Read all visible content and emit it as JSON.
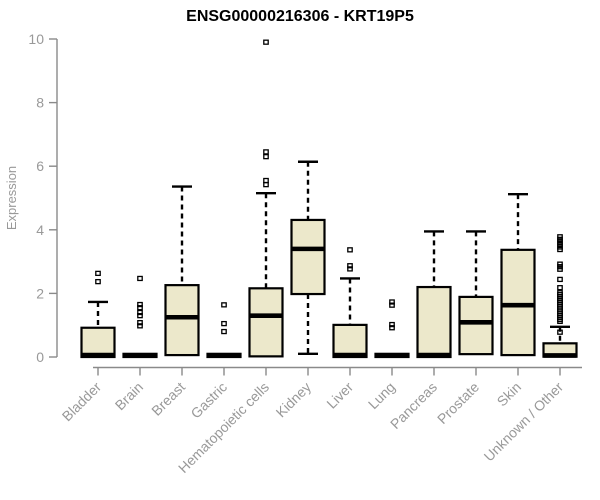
{
  "chart_data": {
    "type": "boxplot",
    "title": "ENSG00000216306 - KRT19P5",
    "ylabel": "Expression",
    "xlabel": "",
    "ylim": [
      0,
      10
    ],
    "yticks": [
      0,
      2,
      4,
      6,
      8,
      10
    ],
    "grid": false,
    "legend": "none",
    "box_fill_color": "#ece8cb",
    "box_stroke_color": "#000000",
    "axis_color": "#8a8a8a",
    "tick_label_color": "#999999",
    "categories": [
      "Bladder",
      "Brain",
      "Breast",
      "Gastric",
      "Hematopoietic cells",
      "Kidney",
      "Liver",
      "Lung",
      "Pancreas",
      "Prostate",
      "Skin",
      "Unknown / Other"
    ],
    "series": [
      {
        "name": "Bladder",
        "whisker_low": null,
        "q1": 0.0,
        "median": 0.06,
        "q3": 0.92,
        "whisker_high": 1.73,
        "outliers": [
          2.63,
          2.37
        ]
      },
      {
        "name": "Brain",
        "whisker_low": null,
        "q1": 0.0,
        "median": 0.05,
        "q3": 0.1,
        "whisker_high": null,
        "outliers": [
          2.47,
          1.65,
          1.55,
          1.4,
          1.3,
          1.08,
          0.98
        ]
      },
      {
        "name": "Breast",
        "whisker_low": null,
        "q1": 0.06,
        "median": 1.25,
        "q3": 2.26,
        "whisker_high": 5.36,
        "outliers": []
      },
      {
        "name": "Gastric",
        "whisker_low": null,
        "q1": 0.0,
        "median": 0.05,
        "q3": 0.1,
        "whisker_high": null,
        "outliers": [
          1.64,
          1.05,
          0.8
        ]
      },
      {
        "name": "Hematopoietic cells",
        "whisker_low": null,
        "q1": 0.02,
        "median": 1.3,
        "q3": 2.16,
        "whisker_high": 5.15,
        "outliers": [
          9.9,
          6.45,
          6.3,
          5.55,
          5.42
        ]
      },
      {
        "name": "Kidney",
        "whisker_low": 0.1,
        "q1": 1.98,
        "median": 3.4,
        "q3": 4.31,
        "whisker_high": 6.14,
        "outliers": []
      },
      {
        "name": "Liver",
        "whisker_low": null,
        "q1": 0.0,
        "median": 0.06,
        "q3": 1.01,
        "whisker_high": 2.47,
        "outliers": [
          3.37,
          2.87,
          2.77
        ]
      },
      {
        "name": "Lung",
        "whisker_low": null,
        "q1": 0.0,
        "median": 0.05,
        "q3": 0.1,
        "whisker_high": null,
        "outliers": [
          1.73,
          1.63,
          1.02,
          0.92
        ]
      },
      {
        "name": "Pancreas",
        "whisker_low": null,
        "q1": 0.0,
        "median": 0.06,
        "q3": 2.2,
        "whisker_high": 3.95,
        "outliers": []
      },
      {
        "name": "Prostate",
        "whisker_low": null,
        "q1": 0.09,
        "median": 1.09,
        "q3": 1.89,
        "whisker_high": 3.95,
        "outliers": []
      },
      {
        "name": "Skin",
        "whisker_low": null,
        "q1": 0.06,
        "median": 1.63,
        "q3": 3.37,
        "whisker_high": 5.12,
        "outliers": []
      },
      {
        "name": "Unknown / Other",
        "whisker_low": null,
        "q1": 0.01,
        "median": 0.05,
        "q3": 0.43,
        "whisker_high": 0.95,
        "outliers": [
          3.78,
          3.7,
          3.62,
          3.54,
          3.46,
          3.38,
          2.92,
          2.84,
          2.76,
          2.44,
          2.18,
          2.02,
          1.96,
          1.9,
          1.84,
          1.78,
          1.72,
          1.66,
          1.6,
          1.54,
          1.48,
          1.42,
          1.36,
          1.3,
          1.24,
          1.18,
          1.12,
          0.78
        ]
      }
    ]
  }
}
